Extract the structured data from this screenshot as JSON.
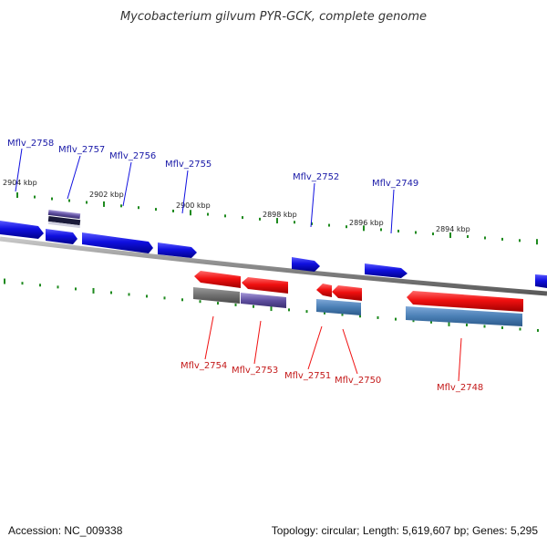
{
  "title": "Mycobacterium gilvum PYR-GCK, complete genome",
  "footer": {
    "accession": "Accession: NC_009338",
    "topology": "Topology: circular; Length: 5,619,607 bp; Genes: 5,295"
  },
  "colors": {
    "forward_gene": "#1010e0",
    "reverse_gene": "#f01010",
    "backbone": "#8a8a8a",
    "tick": "#1e8a1e",
    "pseudo_gray": "#707070",
    "rna_steel": "#4a7fb5",
    "purple": "#6050a0"
  },
  "ticks": [
    {
      "label": "2904 kbp"
    },
    {
      "label": "2902 kbp"
    },
    {
      "label": "2900 kbp"
    },
    {
      "label": "2898 kbp"
    },
    {
      "label": "2896 kbp"
    },
    {
      "label": "2894 kbp"
    }
  ],
  "forward_genes": [
    {
      "name": "Mflv_2758"
    },
    {
      "name": "Mflv_2757"
    },
    {
      "name": "Mflv_2756"
    },
    {
      "name": "Mflv_2755"
    },
    {
      "name": "Mflv_2752"
    },
    {
      "name": "Mflv_2749"
    }
  ],
  "reverse_genes": [
    {
      "name": "Mflv_2754"
    },
    {
      "name": "Mflv_2753"
    },
    {
      "name": "Mflv_2751"
    },
    {
      "name": "Mflv_2750"
    },
    {
      "name": "Mflv_2748"
    }
  ]
}
